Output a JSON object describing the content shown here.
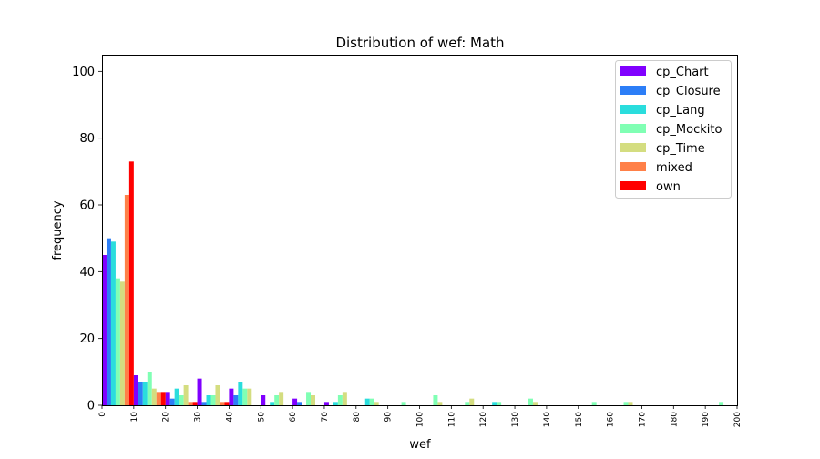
{
  "chart_data": {
    "type": "bar",
    "title": "Distribution of wef: Math",
    "xlabel": "wef",
    "ylabel": "frequency",
    "xlim": [
      0,
      200
    ],
    "ylim": [
      0,
      105
    ],
    "x_ticks": [
      "0",
      "10",
      "20",
      "30",
      "40",
      "50",
      "60",
      "70",
      "80",
      "90",
      "100",
      "110",
      "120",
      "130",
      "140",
      "150",
      "160",
      "170",
      "180",
      "190",
      "200"
    ],
    "y_ticks": [
      "0",
      "20",
      "40",
      "60",
      "80",
      "100"
    ],
    "bin_width": 10,
    "bin_starts": [
      0,
      10,
      20,
      30,
      40,
      50,
      60,
      70,
      80,
      90,
      100,
      110,
      120,
      130,
      140,
      150,
      160,
      170,
      180,
      190
    ],
    "legend_position": "top-right",
    "grid": false,
    "series": [
      {
        "name": "cp_Chart",
        "color": "#8000ff",
        "values": [
          45,
          9,
          4,
          8,
          5,
          3,
          2,
          1,
          0,
          0,
          0,
          0,
          0,
          0,
          0,
          0,
          0,
          0,
          0,
          0
        ]
      },
      {
        "name": "cp_Closure",
        "color": "#2c7ef7",
        "values": [
          50,
          7,
          2,
          1,
          3,
          0,
          1,
          0,
          0,
          0,
          0,
          0,
          0,
          0,
          0,
          0,
          0,
          0,
          0,
          0
        ]
      },
      {
        "name": "cp_Lang",
        "color": "#2adddd",
        "values": [
          49,
          7,
          5,
          3,
          7,
          1,
          0,
          1,
          2,
          0,
          0,
          0,
          1,
          0,
          0,
          0,
          0,
          0,
          0,
          0
        ]
      },
      {
        "name": "cp_Mockito",
        "color": "#80ffb4",
        "values": [
          38,
          10,
          3,
          3,
          5,
          3,
          4,
          3,
          2,
          1,
          3,
          1,
          1,
          2,
          0,
          1,
          1,
          0,
          0,
          1
        ]
      },
      {
        "name": "cp_Time",
        "color": "#d4dd80",
        "values": [
          37,
          5,
          6,
          6,
          5,
          4,
          3,
          4,
          1,
          0,
          1,
          2,
          0,
          1,
          0,
          0,
          1,
          0,
          0,
          0
        ]
      },
      {
        "name": "mixed",
        "color": "#ff8048",
        "values": [
          63,
          4,
          1,
          1,
          0,
          0,
          0,
          0,
          0,
          0,
          0,
          0,
          0,
          0,
          0,
          0,
          0,
          0,
          0,
          0
        ]
      },
      {
        "name": "own",
        "color": "#ff0000",
        "values": [
          73,
          4,
          1,
          1,
          0,
          0,
          0,
          0,
          0,
          0,
          0,
          0,
          0,
          0,
          0,
          0,
          0,
          0,
          0,
          0
        ]
      }
    ]
  }
}
